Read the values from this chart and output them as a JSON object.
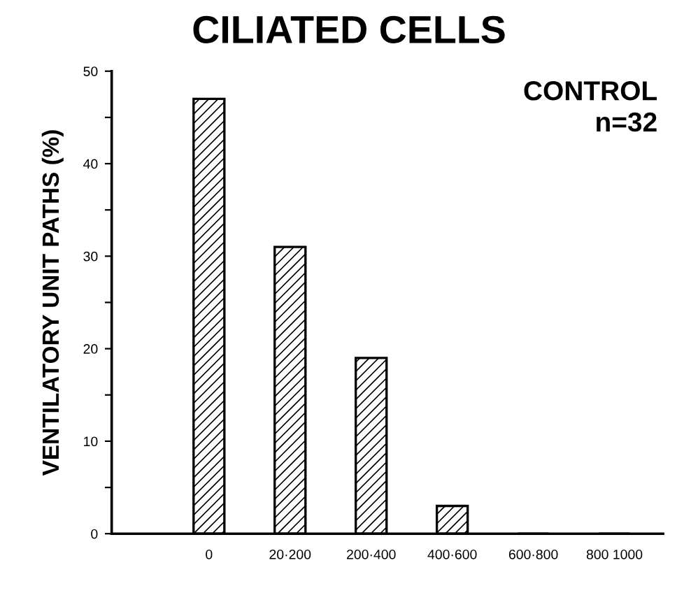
{
  "chart_data": {
    "type": "bar",
    "title": "CILIATED CELLS",
    "ylabel": "VENTILATORY UNIT PATHS (%)",
    "categories": [
      "0",
      "20·200",
      "200·400",
      "400·600",
      "600·800",
      "800 1000"
    ],
    "values": [
      47,
      31,
      19,
      3,
      0,
      0
    ],
    "color": "#000000",
    "ylim": [
      0,
      50
    ],
    "yticks": [
      0,
      {
        "value": 5,
        "label": null
      },
      10,
      {
        "value": 15,
        "label": null
      },
      20,
      {
        "value": 25,
        "label": null
      },
      30,
      {
        "value": 35,
        "label": null
      },
      40,
      {
        "value": 45,
        "label": null
      },
      50
    ],
    "annotations": [
      "CONTROL\nn=32"
    ],
    "grid": false,
    "legend": false
  }
}
